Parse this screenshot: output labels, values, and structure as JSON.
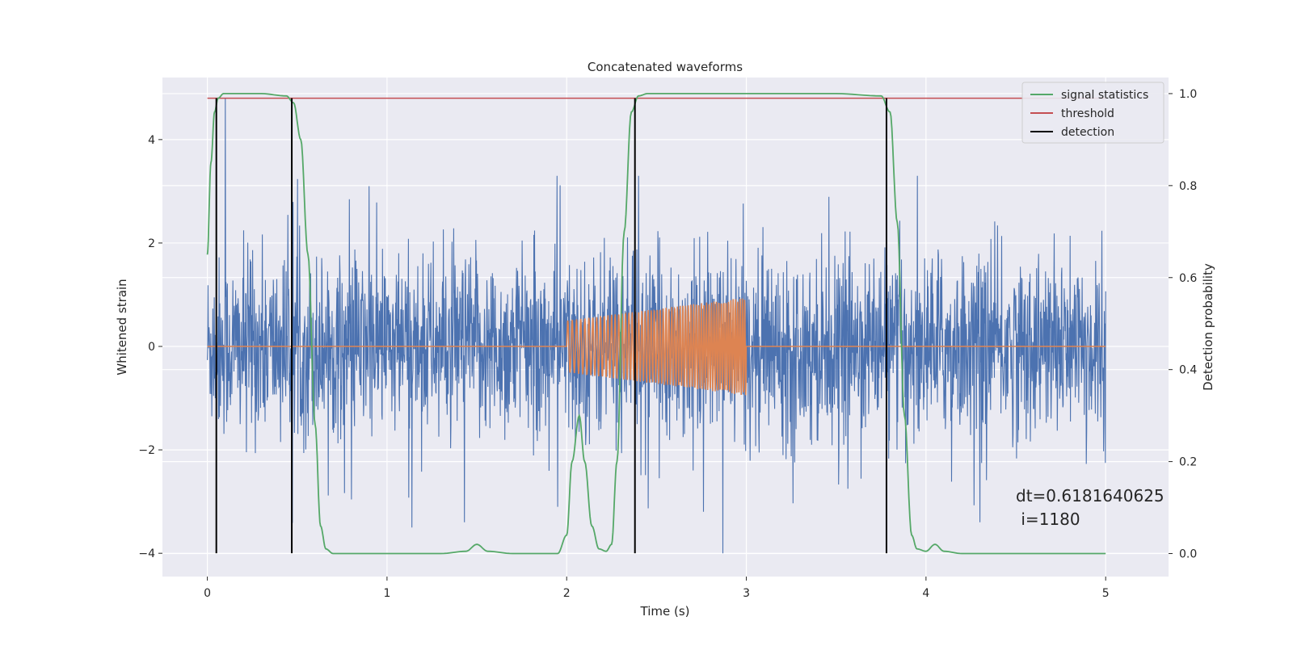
{
  "chart_data": {
    "type": "line",
    "title": "Concatenated waveforms",
    "xlabel": "Time (s)",
    "ylabel": "Whitened strain",
    "y2label": "Detection probability",
    "xlim": [
      -0.25,
      5.35
    ],
    "ylim": [
      -4.45,
      5.2
    ],
    "y2lim": [
      -0.05,
      1.035
    ],
    "xticks": [
      0,
      1,
      2,
      3,
      4,
      5
    ],
    "yticks": [
      -4,
      -2,
      0,
      2,
      4
    ],
    "y2ticks": [
      0.0,
      0.2,
      0.4,
      0.6,
      0.8,
      1.0
    ],
    "xtick_labels": [
      "0",
      "1",
      "2",
      "3",
      "4",
      "5"
    ],
    "ytick_labels": [
      "−4",
      "−2",
      "0",
      "2",
      "4"
    ],
    "y2tick_labels": [
      "0.0",
      "0.2",
      "0.4",
      "0.6",
      "0.8",
      "1.0"
    ],
    "grid": true,
    "legend_position": "top-right",
    "series": [
      {
        "name": "",
        "role": "noisy whitened strain",
        "axis": "left",
        "color": "#4c72b0",
        "x_range": [
          0,
          5
        ],
        "approx_amplitude": 1.3,
        "extremes": [
          {
            "x": 0.1,
            "y": 4.8
          },
          {
            "x": 0.9,
            "y": 3.1
          },
          {
            "x": 2.4,
            "y": 3.3
          },
          {
            "x": 2.87,
            "y": -4.0
          },
          {
            "x": 4.3,
            "y": -3.4
          },
          {
            "x": 1.43,
            "y": -3.4
          }
        ]
      },
      {
        "name": "",
        "role": "injected chirp",
        "axis": "left",
        "color": "#dd8452",
        "x_range": [
          0,
          5
        ],
        "chirp_start": 2.0,
        "chirp_end": 3.0,
        "chirp_amp_start": 0.5,
        "chirp_amp_end": 0.95
      },
      {
        "name": "signal statistics",
        "axis": "right",
        "color": "#55a868",
        "x": [
          0.0,
          0.02,
          0.04,
          0.06,
          0.09,
          0.15,
          0.3,
          0.44,
          0.48,
          0.52,
          0.56,
          0.6,
          0.63,
          0.66,
          0.7,
          1.0,
          1.3,
          1.44,
          1.5,
          1.56,
          1.7,
          1.95,
          2.0,
          2.03,
          2.07,
          2.1,
          2.14,
          2.18,
          2.22,
          2.25,
          2.28,
          2.32,
          2.36,
          2.4,
          2.45,
          2.6,
          3.0,
          3.5,
          3.75,
          3.8,
          3.84,
          3.88,
          3.92,
          3.95,
          4.0,
          4.05,
          4.1,
          4.2,
          4.5,
          5.0
        ],
        "y": [
          0.65,
          0.85,
          0.96,
          0.99,
          1.0,
          1.0,
          1.0,
          0.995,
          0.98,
          0.9,
          0.65,
          0.28,
          0.06,
          0.01,
          0.0,
          0.0,
          0.0,
          0.005,
          0.02,
          0.005,
          0.0,
          0.0,
          0.04,
          0.2,
          0.3,
          0.2,
          0.06,
          0.01,
          0.005,
          0.02,
          0.2,
          0.7,
          0.96,
          0.995,
          1.0,
          1.0,
          1.0,
          1.0,
          0.995,
          0.96,
          0.72,
          0.3,
          0.04,
          0.01,
          0.005,
          0.02,
          0.005,
          0.0,
          0.0,
          0.0
        ]
      },
      {
        "name": "threshold",
        "axis": "right",
        "color": "#c44e52",
        "x": [
          0,
          5
        ],
        "y": [
          0.99,
          0.99
        ]
      },
      {
        "name": "detection",
        "axis": "left",
        "color": "#000000",
        "vlines_x": [
          0.05,
          0.47,
          2.38,
          3.78
        ],
        "ymin": -4.0,
        "ymax": 4.8
      }
    ],
    "annotations": [
      {
        "text": "dt=0.6181640625",
        "x": 4.5,
        "y": -3.0
      },
      {
        "text": " i=1180",
        "x": 4.5,
        "y": -3.45
      }
    ],
    "colors": {
      "plot_background": "#eaeaf2",
      "grid": "#ffffff",
      "text": "#262626"
    }
  }
}
